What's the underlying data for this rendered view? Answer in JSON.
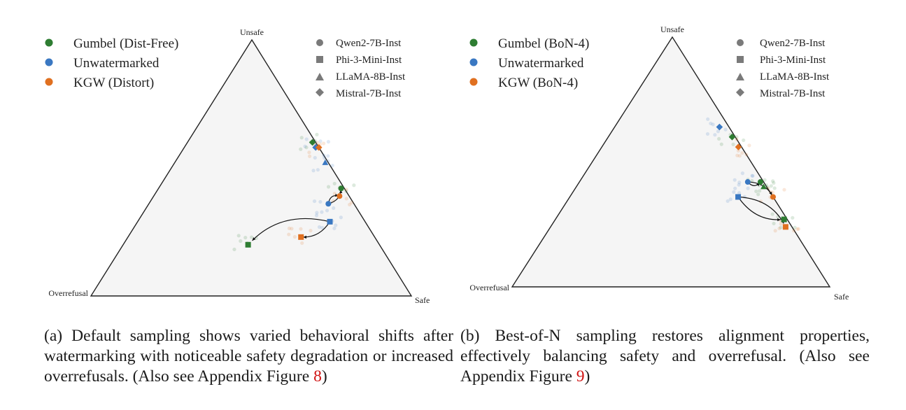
{
  "colors": {
    "gumbel": "#2e7d32",
    "unwatermarked": "#3a78c2",
    "kgw": "#e07020",
    "triangle_fill": "#f5f5f5",
    "marker_legend": "#7a7a7a",
    "ref_link": "#d01010"
  },
  "panels": [
    {
      "caption_text": "(a) Default sampling shows varied behavioral shifts after watermarking with noticeable safety degradation or increased overrefusals. (Also see Appendix Figure ",
      "caption_ref": "8",
      "caption_tail": ")",
      "chart_data": {
        "type": "scatter",
        "subtype": "ternary",
        "vertices": {
          "top": "Unsafe",
          "left": "Overrefusal",
          "right": "Safe"
        },
        "legend_methods": [
          "Gumbel (Dist-Free)",
          "Unwatermarked",
          "KGW (Distort)"
        ],
        "legend_models": [
          "Qwen2-7B-Inst",
          "Phi-3-Mini-Inst",
          "LLaMA-8B-Inst",
          "Mistral-7B-Inst"
        ],
        "legend_placement": "top-left and top-right",
        "points": [
          {
            "method": "Gumbel (Dist-Free)",
            "model": "Mistral-7B-Inst",
            "unsafe": 0.6,
            "overrefusal": 0.01,
            "safe": 0.39
          },
          {
            "method": "Unwatermarked",
            "model": "Mistral-7B-Inst",
            "unsafe": 0.58,
            "overrefusal": 0.01,
            "safe": 0.41
          },
          {
            "method": "KGW (Distort)",
            "model": "Mistral-7B-Inst",
            "unsafe": 0.58,
            "overrefusal": 0.0,
            "safe": 0.42
          },
          {
            "method": "Unwatermarked",
            "model": "LLaMA-8B-Inst",
            "unsafe": 0.52,
            "overrefusal": 0.01,
            "safe": 0.47
          },
          {
            "method": "Gumbel (Dist-Free)",
            "model": "Qwen2-7B-Inst",
            "unsafe": 0.42,
            "overrefusal": 0.01,
            "safe": 0.57
          },
          {
            "method": "KGW (Distort)",
            "model": "Qwen2-7B-Inst",
            "unsafe": 0.39,
            "overrefusal": 0.03,
            "safe": 0.58
          },
          {
            "method": "Unwatermarked",
            "model": "Qwen2-7B-Inst",
            "unsafe": 0.36,
            "overrefusal": 0.08,
            "safe": 0.56
          },
          {
            "method": "Unwatermarked",
            "model": "Phi-3-Mini-Inst",
            "unsafe": 0.29,
            "overrefusal": 0.11,
            "safe": 0.6
          },
          {
            "method": "KGW (Distort)",
            "model": "Phi-3-Mini-Inst",
            "unsafe": 0.23,
            "overrefusal": 0.23,
            "safe": 0.54
          },
          {
            "method": "Gumbel (Dist-Free)",
            "model": "Phi-3-Mini-Inst",
            "unsafe": 0.2,
            "overrefusal": 0.41,
            "safe": 0.39
          }
        ],
        "arrows": [
          {
            "model": "Qwen2-7B-Inst",
            "from": "Unwatermarked",
            "to": [
              "Gumbel (Dist-Free)",
              "KGW (Distort)"
            ]
          },
          {
            "model": "Phi-3-Mini-Inst",
            "from": "Unwatermarked",
            "to": [
              "Gumbel (Dist-Free)",
              "KGW (Distort)"
            ]
          }
        ]
      }
    },
    {
      "caption_text": "(b) Best-of-N sampling restores alignment properties, effectively balancing safety and overrefusal. (Also see Appendix Figure ",
      "caption_ref": "9",
      "caption_tail": ")",
      "chart_data": {
        "type": "scatter",
        "subtype": "ternary",
        "vertices": {
          "top": "Unsafe",
          "left": "Overrefusal",
          "right": "Safe"
        },
        "legend_methods": [
          "Gumbel (BoN-4)",
          "Unwatermarked",
          "KGW (BoN-4)"
        ],
        "legend_models": [
          "Qwen2-7B-Inst",
          "Phi-3-Mini-Inst",
          "LLaMA-8B-Inst",
          "Mistral-7B-Inst"
        ],
        "legend_placement": "top-left and top-right",
        "points": [
          {
            "method": "Unwatermarked",
            "model": "Mistral-7B-Inst",
            "unsafe": 0.64,
            "overrefusal": 0.03,
            "safe": 0.33
          },
          {
            "method": "Gumbel (BoN-4)",
            "model": "Mistral-7B-Inst",
            "unsafe": 0.6,
            "overrefusal": 0.01,
            "safe": 0.39
          },
          {
            "method": "KGW (BoN-4)",
            "model": "Mistral-7B-Inst",
            "unsafe": 0.56,
            "overrefusal": 0.01,
            "safe": 0.43
          },
          {
            "method": "Gumbel (BoN-4)",
            "model": "Qwen2-7B-Inst",
            "unsafe": 0.42,
            "overrefusal": 0.01,
            "safe": 0.57
          },
          {
            "method": "Unwatermarked",
            "model": "Qwen2-7B-Inst",
            "unsafe": 0.42,
            "overrefusal": 0.05,
            "safe": 0.53
          },
          {
            "method": "Gumbel (BoN-4)",
            "model": "LLaMA-8B-Inst",
            "unsafe": 0.4,
            "overrefusal": 0.01,
            "safe": 0.59
          },
          {
            "method": "KGW (BoN-4)",
            "model": "Qwen2-7B-Inst",
            "unsafe": 0.36,
            "overrefusal": 0.0,
            "safe": 0.64
          },
          {
            "method": "Unwatermarked",
            "model": "Phi-3-Mini-Inst",
            "unsafe": 0.36,
            "overrefusal": 0.11,
            "safe": 0.53
          },
          {
            "method": "Gumbel (BoN-4)",
            "model": "Phi-3-Mini-Inst",
            "unsafe": 0.27,
            "overrefusal": 0.01,
            "safe": 0.72
          },
          {
            "method": "KGW (BoN-4)",
            "model": "Phi-3-Mini-Inst",
            "unsafe": 0.24,
            "overrefusal": 0.02,
            "safe": 0.74
          }
        ],
        "arrows": [
          {
            "model": "Qwen2-7B-Inst",
            "from": "Unwatermarked",
            "to": [
              "Gumbel (BoN-4)",
              "KGW (BoN-4)"
            ]
          },
          {
            "model": "Phi-3-Mini-Inst",
            "from": "Unwatermarked",
            "to": [
              "Gumbel (BoN-4)",
              "KGW (BoN-4)"
            ]
          }
        ]
      }
    }
  ]
}
